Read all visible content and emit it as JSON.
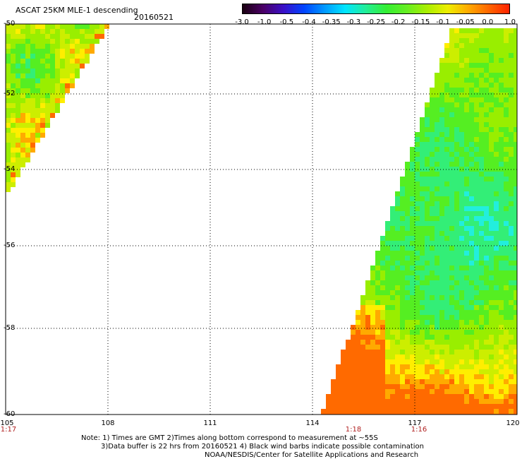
{
  "header": {
    "title": "ASCAT 25KM MLE-1 descending",
    "date": "20160521"
  },
  "colorbar": {
    "tick_labels": [
      "-3.0",
      "-1.0",
      "-0.5",
      "-0.4",
      "-0.35",
      "-0.3",
      "-0.25",
      "-0.2",
      "-0.15",
      "-0.1",
      "-0.05",
      "0.0",
      "1.0"
    ],
    "colors": [
      "#1a0010",
      "#4a0066",
      "#3a10c8",
      "#0044ff",
      "#0099ff",
      "#00e5ff",
      "#22ee99",
      "#33ee33",
      "#66ee22",
      "#aaee00",
      "#eeee00",
      "#ffaa00",
      "#ff6600",
      "#ff2200"
    ]
  },
  "map": {
    "longitude_labels": [
      "105",
      "108",
      "111",
      "114",
      "117",
      "120"
    ],
    "latitude_labels": [
      "-50",
      "-52",
      "-54",
      "-56",
      "-58",
      "-60"
    ],
    "pass_time_labels": [
      "1:17",
      "1:18",
      "1:16"
    ]
  },
  "footer": {
    "note_line1": "Note: 1) Times are GMT 2)Times along bottom correspond to measurement at ~55S",
    "note_line2": "3)Data buffer is 22 hrs from 20160521 4) Black wind barbs indicate possible contamination",
    "credit": "NOAA/NESDIS/Center for Satellite Applications and Research"
  }
}
